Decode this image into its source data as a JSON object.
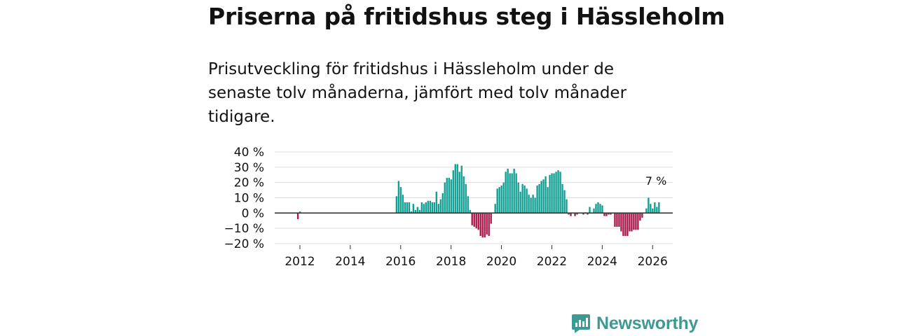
{
  "title": "Priserna på fritidshus steg i Hässleholm",
  "subtitle": "Prisutveckling för fritidshus i Hässleholm under de senaste tolv månaderna, jämfört med tolv månader tidigare.",
  "brand": {
    "name": "Newsworthy",
    "color": "#3d9a93"
  },
  "colors": {
    "positive": "#0f9e92",
    "negative": "#a8174a",
    "grid": "#dcdcdc",
    "axis": "#333333"
  },
  "chart_data": {
    "type": "bar",
    "title": "",
    "xlabel": "",
    "ylabel": "",
    "ylim": [
      -20,
      40
    ],
    "xlim": [
      2011,
      2026.8
    ],
    "yticks": [
      40,
      30,
      20,
      10,
      0,
      -10,
      -20
    ],
    "ytick_labels": [
      "40 %",
      "30 %",
      "20 %",
      "10 %",
      "0 %",
      "−10 %",
      "−20 %"
    ],
    "xticks": [
      2012,
      2014,
      2016,
      2018,
      2020,
      2022,
      2024,
      2026
    ],
    "xtick_labels": [
      "2012",
      "2014",
      "2016",
      "2018",
      "2020",
      "2022",
      "2024",
      "2026"
    ],
    "grid": true,
    "annotation": {
      "x": 2026.08,
      "y": 7,
      "text": "7 %"
    },
    "x_start": 2011.92,
    "step": 0.0833333,
    "values": [
      -4,
      1,
      null,
      null,
      null,
      null,
      null,
      null,
      null,
      null,
      null,
      null,
      null,
      null,
      null,
      null,
      null,
      null,
      null,
      null,
      null,
      null,
      null,
      null,
      null,
      null,
      null,
      null,
      null,
      null,
      null,
      null,
      null,
      null,
      null,
      null,
      null,
      null,
      null,
      null,
      null,
      null,
      null,
      null,
      null,
      null,
      null,
      11,
      21,
      17,
      12,
      7,
      7,
      7,
      1,
      6,
      2,
      4,
      2,
      7,
      6,
      7,
      8,
      8,
      7,
      7,
      14,
      6,
      9,
      13,
      20,
      23,
      23,
      22,
      28,
      32,
      32,
      27,
      31,
      24,
      19,
      11,
      2,
      -8,
      -9,
      -10,
      -11,
      -15,
      -16,
      -16,
      -14,
      -15,
      -7,
      null,
      6,
      16,
      17,
      18,
      20,
      27,
      29,
      26,
      26,
      29,
      26,
      20,
      14,
      19,
      18,
      16,
      12,
      10,
      12,
      10,
      18,
      19,
      21,
      22,
      24,
      17,
      25,
      26,
      26,
      27,
      28,
      27,
      19,
      15,
      9,
      -1,
      -2,
      null,
      -2,
      -1,
      null,
      null,
      -1,
      0.5,
      -1,
      4,
      null,
      3,
      6,
      7,
      6,
      5,
      -2,
      -2,
      -1,
      -1,
      null,
      -9,
      -9,
      -9,
      -12,
      -15,
      -15,
      -15,
      -12,
      -12,
      -11,
      -11,
      -11,
      -5,
      -3,
      null,
      3,
      10,
      6,
      3,
      7,
      4,
      7
    ]
  }
}
